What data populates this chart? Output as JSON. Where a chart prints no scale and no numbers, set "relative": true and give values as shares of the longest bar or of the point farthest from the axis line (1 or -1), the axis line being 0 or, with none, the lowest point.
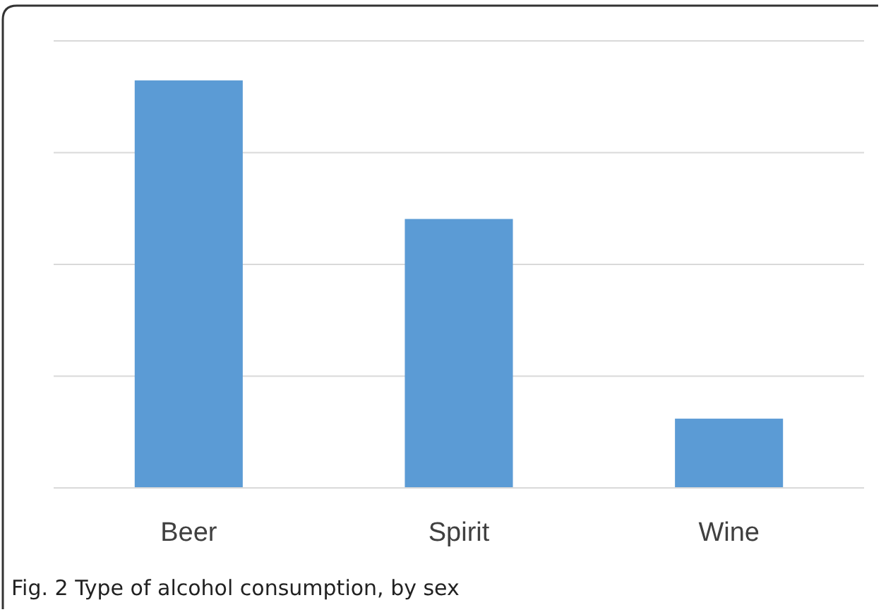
{
  "chart_data": {
    "type": "bar",
    "categories": [
      "Beer",
      "Spirit",
      "Wine"
    ],
    "values": [
      1,
      0.66,
      0.17
    ],
    "color": "#5b9bd5",
    "relative": true,
    "grid": true,
    "annotations": [
      "Fig. 2 Type of alcohol consumption, by sex"
    ]
  }
}
